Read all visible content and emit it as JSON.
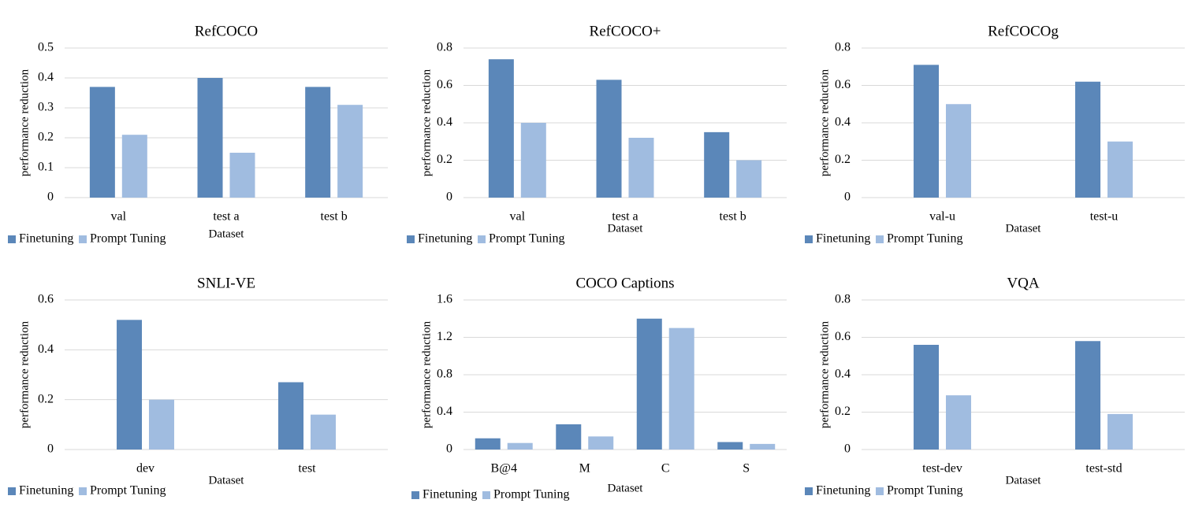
{
  "legend": [
    "Finetuning",
    "Prompt Tuning"
  ],
  "colors": {
    "finetuning": "#5b87b9",
    "prompt_tuning": "#a0bce0"
  },
  "chart_data": [
    {
      "type": "bar",
      "title": "RefCOCO",
      "xlabel": "Dataset",
      "ylabel": "performance reduction",
      "categories": [
        "val",
        "test a",
        "test b"
      ],
      "series": [
        {
          "name": "Finetuning",
          "values": [
            0.37,
            0.4,
            0.37
          ]
        },
        {
          "name": "Prompt Tuning",
          "values": [
            0.21,
            0.15,
            0.31
          ]
        }
      ],
      "ylim": [
        0,
        0.5
      ],
      "yticks": [
        "0",
        "0.1",
        "0.2",
        "0.3",
        "0.4",
        "0.5"
      ],
      "legend_position": "bottom-left"
    },
    {
      "type": "bar",
      "title": "RefCOCO+",
      "xlabel": "Dataset",
      "ylabel": "performance reduction",
      "categories": [
        "val",
        "test a",
        "test b"
      ],
      "series": [
        {
          "name": "Finetuning",
          "values": [
            0.74,
            0.63,
            0.35
          ]
        },
        {
          "name": "Prompt Tuning",
          "values": [
            0.4,
            0.32,
            0.2
          ]
        }
      ],
      "ylim": [
        0,
        0.8
      ],
      "yticks": [
        "0",
        "0.2",
        "0.4",
        "0.6",
        "0.8"
      ],
      "legend_position": "bottom-left"
    },
    {
      "type": "bar",
      "title": "RefCOCOg",
      "xlabel": "Dataset",
      "ylabel": "performance reduction",
      "categories": [
        "val-u",
        "test-u"
      ],
      "series": [
        {
          "name": "Finetuning",
          "values": [
            0.71,
            0.62
          ]
        },
        {
          "name": "Prompt Tuning",
          "values": [
            0.5,
            0.3
          ]
        }
      ],
      "ylim": [
        0,
        0.8
      ],
      "yticks": [
        "0",
        "0.2",
        "0.4",
        "0.6",
        "0.8"
      ],
      "legend_position": "bottom-left"
    },
    {
      "type": "bar",
      "title": "SNLI-VE",
      "xlabel": "Dataset",
      "ylabel": "performance reduction",
      "categories": [
        "dev",
        "test"
      ],
      "series": [
        {
          "name": "Finetuning",
          "values": [
            0.52,
            0.27
          ]
        },
        {
          "name": "Prompt Tuning",
          "values": [
            0.2,
            0.14
          ]
        }
      ],
      "ylim": [
        0,
        0.6
      ],
      "yticks": [
        "0",
        "0.2",
        "0.4",
        "0.6"
      ],
      "legend_position": "bottom-left"
    },
    {
      "type": "bar",
      "title": "COCO Captions",
      "xlabel": "Dataset",
      "ylabel": "performance reduction",
      "categories": [
        "B@4",
        "M",
        "C",
        "S"
      ],
      "series": [
        {
          "name": "Finetuning",
          "values": [
            0.12,
            0.27,
            1.4,
            0.08
          ]
        },
        {
          "name": "Prompt Tuning",
          "values": [
            0.07,
            0.14,
            1.3,
            0.06
          ]
        }
      ],
      "ylim": [
        0,
        1.6
      ],
      "yticks": [
        "0",
        "0.4",
        "0.8",
        "1.2",
        "1.6"
      ],
      "legend_position": "bottom-left"
    },
    {
      "type": "bar",
      "title": "VQA",
      "xlabel": "Dataset",
      "ylabel": "performance reduction",
      "categories": [
        "test-dev",
        "test-std"
      ],
      "series": [
        {
          "name": "Finetuning",
          "values": [
            0.56,
            0.58
          ]
        },
        {
          "name": "Prompt Tuning",
          "values": [
            0.29,
            0.19
          ]
        }
      ],
      "ylim": [
        0,
        0.8
      ],
      "yticks": [
        "0",
        "0.2",
        "0.4",
        "0.6",
        "0.8"
      ],
      "legend_position": "bottom-left"
    }
  ]
}
